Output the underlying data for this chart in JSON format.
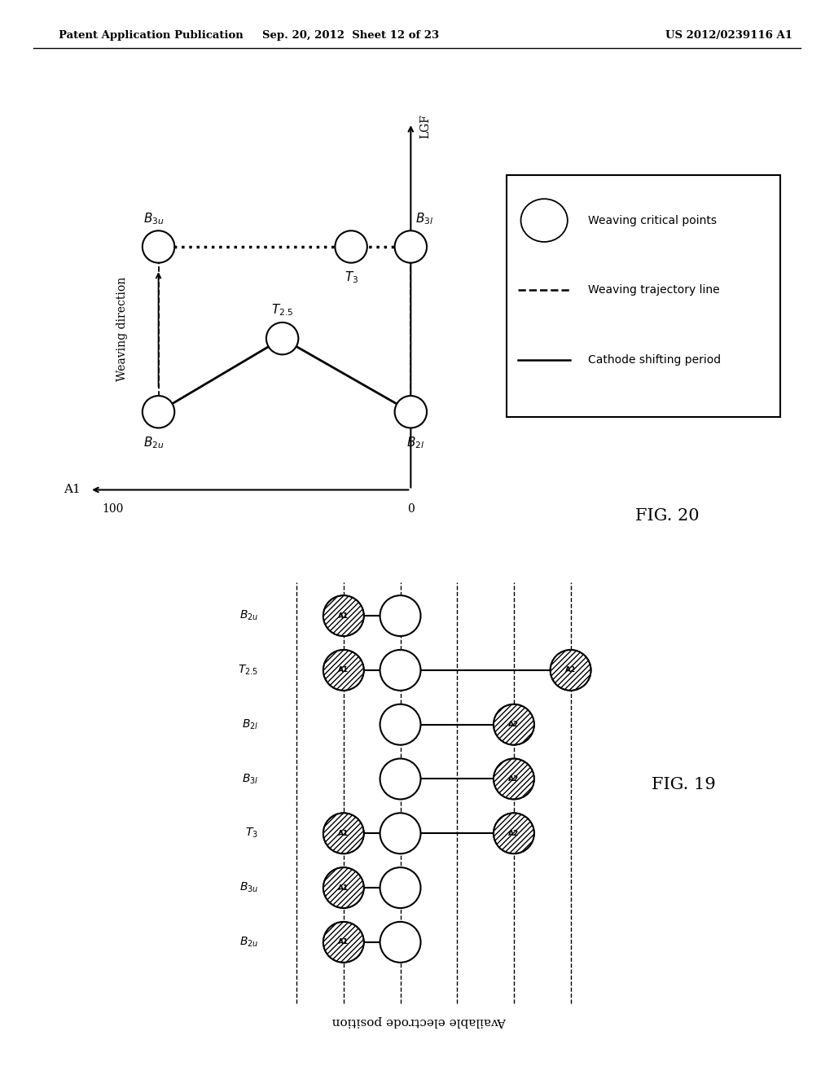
{
  "header_left": "Patent Application Publication",
  "header_mid": "Sep. 20, 2012  Sheet 12 of 23",
  "header_right": "US 2012/0239116 A1",
  "fig20": {
    "title": "FIG. 20",
    "legend_items": [
      {
        "label": "Weaving critical points",
        "style": "circle"
      },
      {
        "label": "Weaving trajectory line",
        "style": "dashed"
      },
      {
        "label": "Cathode shifting period",
        "style": "solid"
      }
    ]
  },
  "fig19": {
    "title": "FIG. 19",
    "ylabel": "Available electrode position",
    "row_labels": [
      "$B_{2u}$",
      "$T_{2.5}$",
      "$B_{2l}$",
      "$B_{3l}$",
      "$T_3$",
      "$B_{3u}$",
      "$B_{2u}$"
    ]
  }
}
